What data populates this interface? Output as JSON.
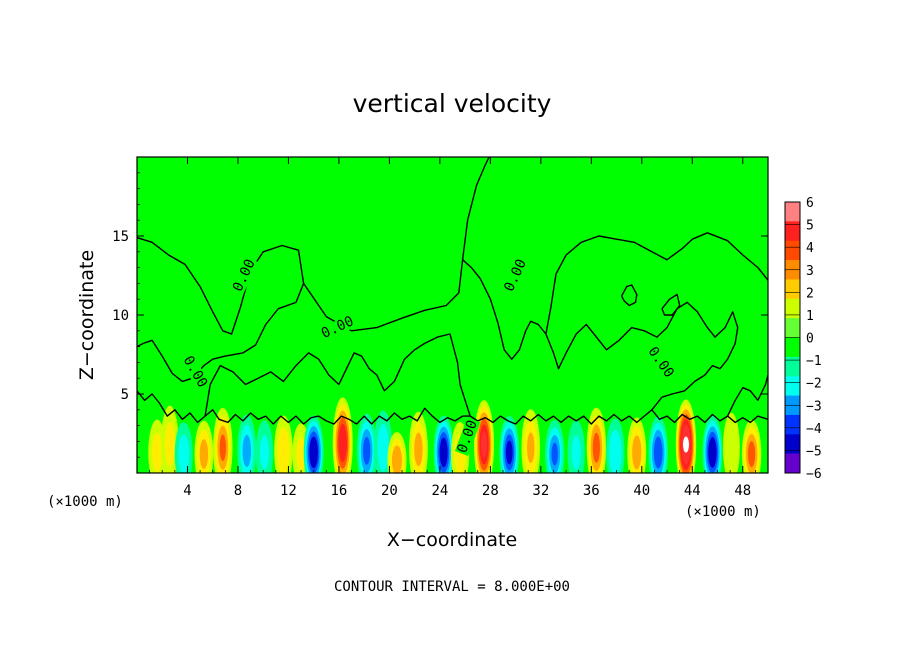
{
  "chart_data": {
    "type": "heatmap",
    "title": "vertical velocity",
    "xlabel": "X−coordinate",
    "ylabel": "Z−coordinate",
    "x_unit_left": "(×1000 m)",
    "x_unit_right": "(×1000 m)",
    "xlim": [
      0,
      50
    ],
    "ylim": [
      0,
      20
    ],
    "xticks": [
      4,
      8,
      12,
      16,
      20,
      24,
      28,
      32,
      36,
      40,
      44,
      48
    ],
    "xtick_labels": [
      "4",
      "8",
      "12",
      "16",
      "20",
      "24",
      "28",
      "32",
      "36",
      "40",
      "44",
      "48"
    ],
    "yticks": [
      5,
      10,
      15
    ],
    "ytick_labels": [
      "5",
      "10",
      "15"
    ],
    "colorbar": {
      "levels": [
        6,
        5,
        4,
        3,
        2,
        1,
        0,
        -1,
        -2,
        -3,
        -4,
        -5,
        -6
      ],
      "labels": [
        "6",
        "5",
        "4",
        "3",
        "2",
        "1",
        "0",
        "−1",
        "−2",
        "−3",
        "−4",
        "−5",
        "−6"
      ],
      "colors": [
        "#ff8080",
        "#ff2020",
        "#ff4a00",
        "#ff8c00",
        "#ffcc00",
        "#ccff00",
        "#66ff33",
        "#00ff00",
        "#00ff99",
        "#00ffee",
        "#0099ff",
        "#0033ff",
        "#0000cc",
        "#6600cc"
      ]
    },
    "contour_label": "0.00",
    "footer": "CONTOUR INTERVAL = 8.000E+00",
    "cells": [
      {
        "x": 1.6,
        "z": 1.3,
        "w": 1.4
      },
      {
        "x": 2.6,
        "z": 1.8,
        "w": 1.3
      },
      {
        "x": 3.7,
        "z": 1.2,
        "w": -1.5
      },
      {
        "x": 5.3,
        "z": 1.2,
        "w": 2.2
      },
      {
        "x": 6.8,
        "z": 1.6,
        "w": 2.8
      },
      {
        "x": 8.7,
        "z": 1.4,
        "w": -2.2
      },
      {
        "x": 10.1,
        "z": 1.3,
        "w": -1.2
      },
      {
        "x": 11.6,
        "z": 1.4,
        "w": 1.8
      },
      {
        "x": 13.0,
        "z": 1.2,
        "w": 1.2
      },
      {
        "x": 14.0,
        "z": 1.3,
        "w": -4.5
      },
      {
        "x": 16.3,
        "z": 1.9,
        "w": 4.4
      },
      {
        "x": 18.2,
        "z": 1.4,
        "w": -3.0
      },
      {
        "x": 19.5,
        "z": 1.6,
        "w": -1.6
      },
      {
        "x": 20.6,
        "z": 0.8,
        "w": 2.6
      },
      {
        "x": 22.3,
        "z": 1.5,
        "w": 2.2
      },
      {
        "x": 24.3,
        "z": 1.3,
        "w": -4.3
      },
      {
        "x": 25.6,
        "z": 1.2,
        "w": 1.6
      },
      {
        "x": 27.5,
        "z": 1.8,
        "w": 4.7
      },
      {
        "x": 29.5,
        "z": 1.3,
        "w": -3.8
      },
      {
        "x": 31.2,
        "z": 1.6,
        "w": 2.0
      },
      {
        "x": 33.1,
        "z": 1.2,
        "w": -2.8
      },
      {
        "x": 34.8,
        "z": 1.3,
        "w": -1.2
      },
      {
        "x": 36.4,
        "z": 1.6,
        "w": 3.0
      },
      {
        "x": 37.9,
        "z": 1.3,
        "w": -1.8
      },
      {
        "x": 39.6,
        "z": 1.3,
        "w": 2.4
      },
      {
        "x": 41.3,
        "z": 1.3,
        "w": -3.4
      },
      {
        "x": 43.5,
        "z": 1.8,
        "w": 6.0
      },
      {
        "x": 45.6,
        "z": 1.3,
        "w": -4.4
      },
      {
        "x": 47.1,
        "z": 1.6,
        "w": 1.0
      },
      {
        "x": 48.7,
        "z": 1.2,
        "w": 3.0
      }
    ],
    "contours": [
      [
        [
          0.0,
          14.9
        ],
        [
          1.2,
          14.6
        ],
        [
          2.5,
          13.8
        ],
        [
          3.8,
          13.2
        ],
        [
          5.0,
          11.8
        ],
        [
          6.0,
          10.2
        ],
        [
          6.8,
          9.0
        ],
        [
          7.5,
          8.8
        ],
        [
          8.2,
          10.5
        ],
        [
          9.0,
          12.8
        ],
        [
          10.0,
          14.0
        ],
        [
          11.5,
          14.4
        ],
        [
          12.8,
          14.1
        ],
        [
          13.2,
          12.0
        ],
        [
          12.6,
          10.8
        ],
        [
          11.2,
          10.4
        ],
        [
          10.2,
          9.4
        ],
        [
          9.4,
          8.1
        ],
        [
          8.4,
          7.6
        ],
        [
          7.0,
          7.4
        ],
        [
          6.0,
          7.2
        ],
        [
          5.3,
          6.8
        ],
        [
          4.4,
          6.0
        ],
        [
          3.6,
          5.8
        ],
        [
          2.8,
          6.3
        ],
        [
          2.0,
          7.4
        ],
        [
          1.2,
          8.4
        ],
        [
          0.5,
          8.2
        ],
        [
          0.0,
          8.0
        ]
      ],
      [
        [
          13.2,
          12.0
        ],
        [
          15.0,
          9.9
        ],
        [
          17.0,
          9.0
        ],
        [
          19.0,
          9.2
        ],
        [
          21.0,
          9.8
        ],
        [
          22.8,
          10.3
        ],
        [
          24.5,
          10.6
        ],
        [
          25.5,
          11.4
        ],
        [
          25.8,
          13.5
        ],
        [
          26.2,
          16.0
        ],
        [
          26.9,
          18.2
        ],
        [
          27.6,
          19.5
        ],
        [
          27.9,
          20.0
        ]
      ],
      [
        [
          25.8,
          13.5
        ],
        [
          26.5,
          13.0
        ],
        [
          27.2,
          12.3
        ],
        [
          28.0,
          11.0
        ],
        [
          28.6,
          9.5
        ],
        [
          29.1,
          7.8
        ],
        [
          29.7,
          7.2
        ],
        [
          30.3,
          7.8
        ],
        [
          30.8,
          9.0
        ],
        [
          31.2,
          9.6
        ],
        [
          31.8,
          9.4
        ],
        [
          32.4,
          8.8
        ]
      ],
      [
        [
          32.4,
          8.8
        ],
        [
          32.8,
          10.5
        ],
        [
          33.2,
          12.6
        ],
        [
          34.0,
          13.8
        ],
        [
          35.2,
          14.6
        ],
        [
          36.6,
          15.0
        ],
        [
          38.0,
          14.8
        ],
        [
          39.4,
          14.6
        ],
        [
          40.8,
          14.0
        ],
        [
          42.0,
          13.5
        ],
        [
          43.2,
          14.2
        ],
        [
          44.0,
          14.8
        ],
        [
          45.2,
          15.2
        ],
        [
          46.8,
          14.7
        ],
        [
          48.0,
          13.8
        ],
        [
          49.2,
          13.0
        ],
        [
          50.0,
          12.2
        ]
      ],
      [
        [
          0.0,
          5.2
        ],
        [
          0.6,
          4.6
        ],
        [
          1.2,
          5.0
        ],
        [
          1.8,
          4.4
        ],
        [
          2.4,
          3.6
        ],
        [
          3.0,
          4.0
        ],
        [
          3.6,
          3.4
        ],
        [
          4.2,
          3.8
        ],
        [
          4.8,
          3.2
        ],
        [
          5.4,
          3.6
        ],
        [
          6.0,
          4.0
        ],
        [
          6.5,
          3.4
        ],
        [
          7.2,
          3.2
        ],
        [
          7.8,
          3.7
        ],
        [
          8.4,
          3.3
        ],
        [
          9.0,
          3.8
        ],
        [
          9.6,
          3.4
        ],
        [
          10.2,
          3.6
        ],
        [
          10.8,
          3.1
        ],
        [
          11.4,
          3.6
        ],
        [
          12.0,
          3.2
        ],
        [
          12.6,
          3.6
        ],
        [
          13.2,
          3.1
        ],
        [
          13.8,
          3.5
        ],
        [
          14.4,
          3.6
        ],
        [
          15.0,
          3.3
        ],
        [
          15.6,
          3.1
        ],
        [
          16.2,
          3.6
        ],
        [
          16.8,
          3.4
        ],
        [
          17.4,
          3.1
        ],
        [
          18.0,
          3.6
        ],
        [
          18.6,
          3.1
        ],
        [
          19.2,
          3.6
        ],
        [
          19.8,
          3.3
        ],
        [
          20.4,
          3.8
        ],
        [
          21.0,
          3.4
        ],
        [
          21.6,
          3.6
        ],
        [
          22.2,
          3.3
        ],
        [
          22.8,
          4.1
        ],
        [
          23.4,
          3.6
        ],
        [
          24.0,
          3.2
        ],
        [
          24.6,
          3.5
        ],
        [
          25.2,
          3.3
        ],
        [
          25.8,
          3.6
        ],
        [
          26.4,
          3.6
        ],
        [
          27.0,
          3.3
        ],
        [
          27.6,
          3.5
        ],
        [
          28.2,
          3.2
        ],
        [
          28.8,
          3.6
        ],
        [
          29.4,
          3.3
        ],
        [
          30.0,
          3.1
        ],
        [
          30.6,
          3.6
        ],
        [
          31.2,
          3.3
        ],
        [
          31.8,
          3.7
        ],
        [
          32.4,
          3.3
        ],
        [
          33.0,
          3.6
        ],
        [
          33.6,
          3.2
        ],
        [
          34.2,
          3.6
        ],
        [
          34.8,
          3.3
        ],
        [
          35.4,
          3.6
        ],
        [
          36.0,
          3.1
        ],
        [
          36.6,
          3.6
        ],
        [
          37.2,
          3.3
        ],
        [
          37.8,
          3.7
        ],
        [
          38.4,
          3.3
        ],
        [
          39.0,
          3.6
        ],
        [
          39.6,
          3.2
        ],
        [
          40.2,
          3.6
        ],
        [
          40.8,
          4.0
        ],
        [
          41.4,
          3.4
        ],
        [
          42.0,
          3.6
        ],
        [
          42.6,
          3.2
        ],
        [
          43.2,
          3.7
        ],
        [
          43.8,
          3.4
        ],
        [
          44.4,
          3.6
        ],
        [
          45.0,
          3.2
        ],
        [
          45.6,
          3.7
        ],
        [
          46.2,
          3.3
        ],
        [
          46.8,
          3.6
        ],
        [
          47.4,
          3.2
        ],
        [
          48.0,
          3.5
        ],
        [
          48.6,
          3.2
        ],
        [
          49.2,
          3.6
        ],
        [
          50.0,
          3.4
        ]
      ],
      [
        [
          5.4,
          3.6
        ],
        [
          5.8,
          5.6
        ],
        [
          6.6,
          6.8
        ],
        [
          7.6,
          6.4
        ],
        [
          8.6,
          5.6
        ],
        [
          9.6,
          6.0
        ],
        [
          10.6,
          6.4
        ],
        [
          11.6,
          5.8
        ],
        [
          12.6,
          6.8
        ],
        [
          13.6,
          7.6
        ],
        [
          14.4,
          7.2
        ],
        [
          15.2,
          6.2
        ],
        [
          16.0,
          5.6
        ],
        [
          16.6,
          6.6
        ],
        [
          17.2,
          7.6
        ],
        [
          17.8,
          7.4
        ],
        [
          18.4,
          6.6
        ],
        [
          19.0,
          6.2
        ],
        [
          19.6,
          5.2
        ],
        [
          20.4,
          5.8
        ],
        [
          21.2,
          7.2
        ],
        [
          22.0,
          7.8
        ],
        [
          22.8,
          8.2
        ],
        [
          23.8,
          8.6
        ],
        [
          24.8,
          8.8
        ],
        [
          25.4,
          7.0
        ],
        [
          25.6,
          5.6
        ],
        [
          26.0,
          4.6
        ],
        [
          26.4,
          3.6
        ]
      ],
      [
        [
          32.4,
          8.8
        ],
        [
          33.0,
          7.6
        ],
        [
          33.4,
          6.6
        ],
        [
          34.0,
          7.6
        ],
        [
          34.8,
          8.8
        ],
        [
          35.6,
          9.4
        ],
        [
          36.4,
          8.6
        ],
        [
          37.2,
          7.8
        ],
        [
          38.2,
          8.4
        ],
        [
          39.2,
          9.2
        ],
        [
          40.2,
          9.0
        ],
        [
          41.2,
          8.6
        ],
        [
          42.0,
          9.2
        ],
        [
          42.8,
          10.4
        ],
        [
          43.6,
          10.8
        ],
        [
          44.4,
          10.2
        ],
        [
          45.2,
          9.2
        ],
        [
          45.8,
          8.6
        ],
        [
          46.6,
          9.2
        ],
        [
          47.2,
          10.2
        ],
        [
          47.6,
          9.2
        ],
        [
          47.4,
          8.2
        ],
        [
          46.8,
          7.2
        ],
        [
          46.2,
          6.6
        ],
        [
          45.6,
          6.8
        ],
        [
          45.0,
          6.2
        ],
        [
          44.2,
          5.8
        ],
        [
          43.4,
          5.2
        ],
        [
          42.4,
          5.0
        ],
        [
          41.6,
          4.8
        ],
        [
          40.8,
          4.0
        ]
      ],
      [
        [
          38.4,
          11.2
        ],
        [
          38.8,
          11.8
        ],
        [
          39.2,
          11.9
        ],
        [
          39.6,
          11.3
        ],
        [
          39.5,
          10.8
        ],
        [
          39.0,
          10.6
        ],
        [
          38.6,
          10.9
        ],
        [
          38.4,
          11.2
        ]
      ],
      [
        [
          41.6,
          10.4
        ],
        [
          42.2,
          11.0
        ],
        [
          42.8,
          11.3
        ],
        [
          43.0,
          10.6
        ],
        [
          42.4,
          10.0
        ],
        [
          41.8,
          10.0
        ],
        [
          41.6,
          10.4
        ]
      ],
      [
        [
          46.8,
          3.6
        ],
        [
          47.4,
          4.6
        ],
        [
          48.0,
          5.4
        ],
        [
          48.6,
          5.2
        ],
        [
          49.2,
          4.6
        ],
        [
          49.8,
          5.6
        ],
        [
          50.0,
          6.2
        ]
      ]
    ],
    "contour_labels": [
      {
        "x": 8.5,
        "z": 12.5,
        "rot": -65
      },
      {
        "x": 15.9,
        "z": 9.2,
        "rot": -25
      },
      {
        "x": 4.6,
        "z": 6.4,
        "rot": 60
      },
      {
        "x": 30.0,
        "z": 12.5,
        "rot": -65
      },
      {
        "x": 41.5,
        "z": 7.0,
        "rot": 55
      },
      {
        "x": 26.2,
        "z": 2.3,
        "rot": -70
      }
    ]
  }
}
